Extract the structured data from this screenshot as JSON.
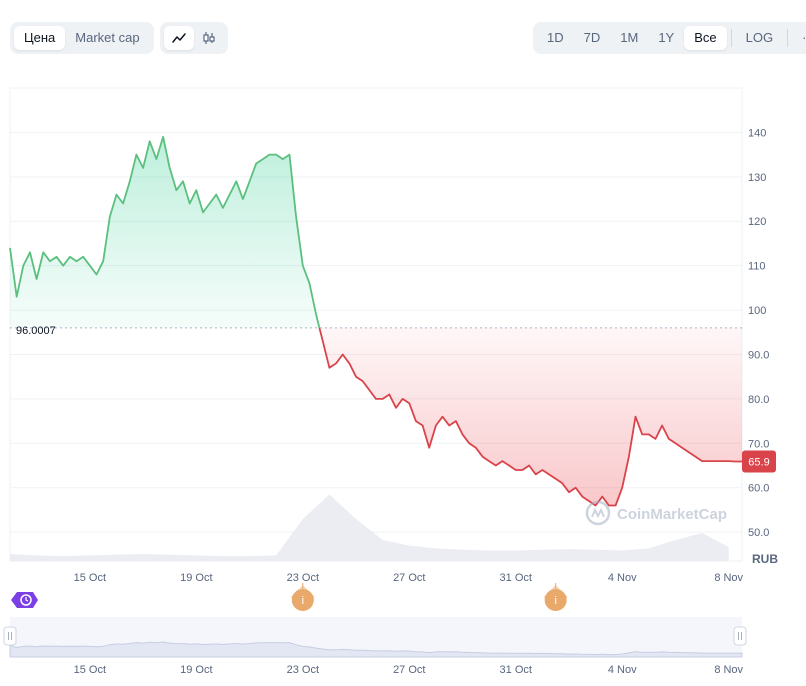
{
  "toolbar": {
    "type_tabs": [
      {
        "label": "Цена",
        "active": true
      },
      {
        "label": "Market cap",
        "active": false
      }
    ],
    "style_icons": [
      {
        "icon": "line-chart-icon",
        "active": true
      },
      {
        "icon": "candlestick-icon",
        "active": false
      }
    ],
    "range_tabs": [
      {
        "label": "1D",
        "active": false
      },
      {
        "label": "7D",
        "active": false
      },
      {
        "label": "1M",
        "active": false
      },
      {
        "label": "1Y",
        "active": false
      },
      {
        "label": "Все",
        "active": true
      }
    ],
    "log_label": "LOG",
    "more_label": "···"
  },
  "chart_data": {
    "type": "area",
    "currency": "RUB",
    "watermark": "CoinMarketCap",
    "baseline_value": 96.0007,
    "baseline_label": "96.0007",
    "current_value": 65.9,
    "current_label": "65.9",
    "y_ticks": [
      "140",
      "130",
      "120",
      "110",
      "100",
      "90.0",
      "80.0",
      "70.0",
      "60.0",
      "50.0"
    ],
    "y_tick_values": [
      140,
      130,
      120,
      110,
      100,
      90,
      80,
      70,
      60,
      50
    ],
    "ylim": [
      43.5,
      150
    ],
    "x_start": "2023-10-12",
    "x_end": "2023-11-08T12:00",
    "x_ticks": [
      "15 Oct",
      "19 Oct",
      "23 Oct",
      "27 Oct",
      "31 Oct",
      "4 Nov",
      "8 Nov"
    ],
    "x_tick_dates": [
      "2023-10-15",
      "2023-10-19",
      "2023-10-23",
      "2023-10-27",
      "2023-10-31",
      "2023-11-04",
      "2023-11-08"
    ],
    "colors": {
      "up": "#16c784",
      "up_line": "#5bbf7e",
      "down_line": "#d9434a",
      "grid": "#eff2f5",
      "baseline": "#a6b0c3",
      "current_badge": "#d9434a"
    },
    "series": [
      {
        "x": [
          "2023-10-12T00:00",
          "2023-10-12T06:00",
          "2023-10-12T12:00",
          "2023-10-12T18:00",
          "2023-10-13T00:00",
          "2023-10-13T06:00",
          "2023-10-13T12:00",
          "2023-10-13T18:00",
          "2023-10-14T00:00",
          "2023-10-14T06:00",
          "2023-10-14T12:00",
          "2023-10-14T18:00",
          "2023-10-15T00:00",
          "2023-10-15T06:00",
          "2023-10-15T12:00",
          "2023-10-15T18:00",
          "2023-10-16T00:00",
          "2023-10-16T06:00",
          "2023-10-16T12:00",
          "2023-10-16T18:00",
          "2023-10-17T00:00",
          "2023-10-17T06:00",
          "2023-10-17T12:00",
          "2023-10-17T18:00",
          "2023-10-18T00:00",
          "2023-10-18T06:00",
          "2023-10-18T12:00",
          "2023-10-18T18:00",
          "2023-10-19T00:00",
          "2023-10-19T06:00",
          "2023-10-19T12:00",
          "2023-10-19T18:00",
          "2023-10-20T00:00",
          "2023-10-20T06:00",
          "2023-10-20T12:00",
          "2023-10-20T18:00",
          "2023-10-21T00:00",
          "2023-10-21T06:00",
          "2023-10-21T12:00",
          "2023-10-21T18:00",
          "2023-10-22T00:00",
          "2023-10-22T06:00",
          "2023-10-22T12:00",
          "2023-10-22T18:00",
          "2023-10-23T00:00",
          "2023-10-23T06:00",
          "2023-10-23T12:00",
          "2023-10-23T18:00",
          "2023-10-24T00:00",
          "2023-10-24T06:00",
          "2023-10-24T12:00",
          "2023-10-24T18:00",
          "2023-10-25T00:00",
          "2023-10-25T06:00",
          "2023-10-25T12:00",
          "2023-10-25T18:00",
          "2023-10-26T00:00",
          "2023-10-26T06:00",
          "2023-10-26T12:00",
          "2023-10-26T18:00",
          "2023-10-27T00:00",
          "2023-10-27T06:00",
          "2023-10-27T12:00",
          "2023-10-27T18:00",
          "2023-10-28T00:00",
          "2023-10-28T06:00",
          "2023-10-28T12:00",
          "2023-10-28T18:00",
          "2023-10-29T00:00",
          "2023-10-29T06:00",
          "2023-10-29T12:00",
          "2023-10-29T18:00",
          "2023-10-30T00:00",
          "2023-10-30T06:00",
          "2023-10-30T12:00",
          "2023-10-30T18:00",
          "2023-10-31T00:00",
          "2023-10-31T06:00",
          "2023-10-31T12:00",
          "2023-10-31T18:00",
          "2023-11-01T00:00",
          "2023-11-01T06:00",
          "2023-11-01T12:00",
          "2023-11-01T18:00",
          "2023-11-02T00:00",
          "2023-11-02T06:00",
          "2023-11-02T12:00",
          "2023-11-02T18:00",
          "2023-11-03T00:00",
          "2023-11-03T06:00",
          "2023-11-03T12:00",
          "2023-11-03T18:00",
          "2023-11-04T00:00",
          "2023-11-04T06:00",
          "2023-11-04T12:00",
          "2023-11-04T18:00",
          "2023-11-05T00:00",
          "2023-11-05T06:00",
          "2023-11-05T12:00",
          "2023-11-05T18:00",
          "2023-11-06T00:00",
          "2023-11-06T06:00",
          "2023-11-06T12:00",
          "2023-11-06T18:00",
          "2023-11-07T00:00",
          "2023-11-07T06:00",
          "2023-11-07T12:00",
          "2023-11-07T18:00",
          "2023-11-08T00:00",
          "2023-11-08T06:00",
          "2023-11-08T12:00"
        ],
        "y": [
          114,
          103,
          110,
          113,
          107,
          113,
          111,
          112,
          110,
          112,
          111,
          112,
          110,
          108,
          111,
          121,
          126,
          124,
          129,
          135,
          132,
          138,
          134,
          139,
          132,
          127,
          129,
          124,
          127,
          122,
          124,
          126,
          123,
          126,
          129,
          125,
          129,
          133,
          134,
          135,
          135,
          134,
          135,
          121,
          110,
          106,
          99,
          93,
          87,
          88,
          90,
          88,
          85,
          84,
          82,
          80,
          80,
          81,
          78,
          80,
          79,
          75,
          74,
          69,
          74,
          76,
          74,
          75,
          72,
          70,
          69,
          67,
          66,
          65,
          66,
          65,
          64,
          64,
          65,
          63,
          64,
          63,
          62,
          61,
          59,
          60,
          58,
          57,
          56,
          58,
          56,
          56,
          60,
          67,
          76,
          72,
          72,
          71,
          74,
          71,
          70,
          69,
          68,
          67,
          66,
          66,
          66,
          66,
          66,
          65.9,
          65.9
        ]
      }
    ],
    "volume": {
      "x": [
        "2023-10-12",
        "2023-10-13",
        "2023-10-14",
        "2023-10-15",
        "2023-10-16",
        "2023-10-17",
        "2023-10-18",
        "2023-10-19",
        "2023-10-20",
        "2023-10-21",
        "2023-10-22",
        "2023-10-23",
        "2023-10-24",
        "2023-10-25",
        "2023-10-26",
        "2023-10-27",
        "2023-10-28",
        "2023-10-29",
        "2023-10-30",
        "2023-10-31",
        "2023-11-01",
        "2023-11-02",
        "2023-11-03",
        "2023-11-04",
        "2023-11-05",
        "2023-11-06",
        "2023-11-07",
        "2023-11-08"
      ],
      "values": [
        0.1,
        0.08,
        0.07,
        0.08,
        0.09,
        0.1,
        0.09,
        0.08,
        0.07,
        0.07,
        0.08,
        0.6,
        0.95,
        0.6,
        0.3,
        0.22,
        0.18,
        0.16,
        0.15,
        0.15,
        0.16,
        0.17,
        0.16,
        0.15,
        0.18,
        0.3,
        0.4,
        0.2
      ]
    },
    "events": [
      {
        "date": "2023-10-23",
        "label": "i"
      },
      {
        "date": "2023-11-01T12:00",
        "label": "i"
      }
    ],
    "navigator_ticks": [
      "15 Oct",
      "19 Oct",
      "23 Oct",
      "27 Oct",
      "31 Oct",
      "4 Nov",
      "8 Nov"
    ]
  }
}
